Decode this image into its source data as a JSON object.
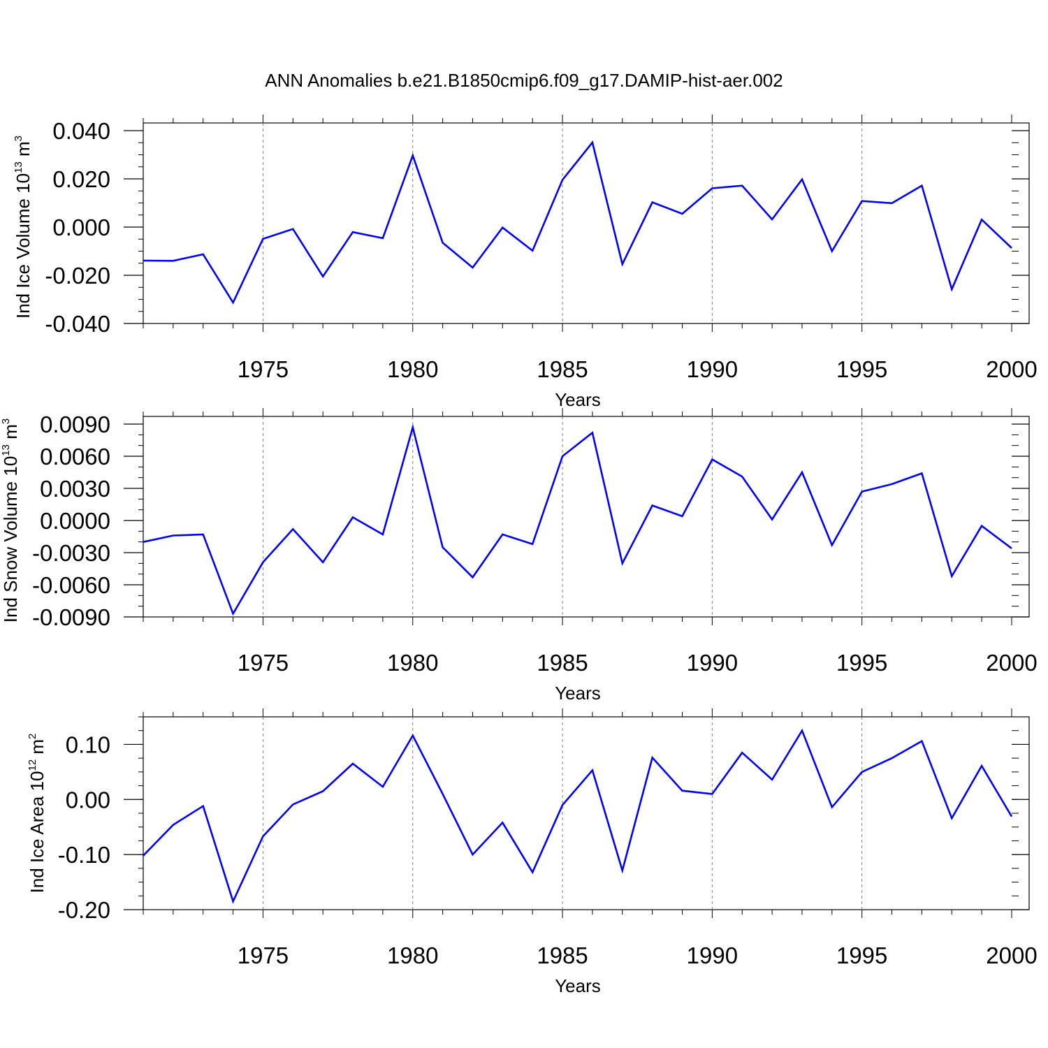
{
  "figure_title": "ANN Anomalies b.e21.B1850cmip6.f09_g17.DAMIP-hist-aer.002",
  "colors": {
    "line": "#0000ff",
    "axis": "#000000",
    "grid": "#808080"
  },
  "chart_data": [
    {
      "type": "line",
      "ylabel": {
        "text": "Ind Ice Volume 10",
        "sup": "13",
        "unit": " m",
        "unit_sup": "3"
      },
      "xlabel": "Years",
      "xlim": [
        1971,
        2000
      ],
      "ylim": [
        -0.04,
        0.04
      ],
      "x_ticks": [
        1975,
        1980,
        1985,
        1990,
        1995,
        2000
      ],
      "x_tick_labels": [
        "1975",
        "1980",
        "1985",
        "1990",
        "1995",
        "2000"
      ],
      "y_ticks": [
        -0.04,
        -0.02,
        0.0,
        0.02,
        0.04
      ],
      "y_tick_labels": [
        "-0.040",
        "-0.020",
        "0.000",
        "0.020",
        "0.040"
      ],
      "y_minor_step": 0.005,
      "grid": "vertical dashed at major x ticks",
      "x": [
        1971,
        1972,
        1973,
        1974,
        1975,
        1976,
        1977,
        1978,
        1979,
        1980,
        1981,
        1982,
        1983,
        1984,
        1985,
        1986,
        1987,
        1988,
        1989,
        1990,
        1991,
        1992,
        1993,
        1994,
        1995,
        1996,
        1997,
        1998,
        1999,
        2000
      ],
      "series": [
        {
          "values": [
            -0.0139,
            -0.014,
            -0.0113,
            -0.0313,
            -0.0049,
            -0.0008,
            -0.0205,
            -0.0021,
            -0.0046,
            0.0297,
            -0.0065,
            -0.0168,
            -0.0002,
            -0.0098,
            0.0196,
            0.0351,
            -0.0154,
            0.0103,
            0.0055,
            0.0161,
            0.0172,
            0.0032,
            0.0198,
            -0.01,
            0.0108,
            0.0099,
            0.0172,
            -0.0258,
            0.0031,
            -0.0087
          ]
        }
      ]
    },
    {
      "type": "line",
      "ylabel": {
        "text": "Ind Snow Volume 10",
        "sup": "13",
        "unit": " m",
        "unit_sup": "3"
      },
      "xlabel": "Years",
      "xlim": [
        1971,
        2000
      ],
      "ylim": [
        -0.009,
        0.009
      ],
      "x_ticks": [
        1975,
        1980,
        1985,
        1990,
        1995,
        2000
      ],
      "x_tick_labels": [
        "1975",
        "1980",
        "1985",
        "1990",
        "1995",
        "2000"
      ],
      "y_ticks": [
        -0.009,
        -0.006,
        -0.003,
        0.0,
        0.003,
        0.006,
        0.009
      ],
      "y_tick_labels": [
        "-0.0090",
        "-0.0060",
        "-0.0030",
        "0.0000",
        "0.0030",
        "0.0060",
        "0.0090"
      ],
      "y_minor_step": 0.001,
      "grid": "vertical dashed at major x ticks",
      "x": [
        1971,
        1972,
        1973,
        1974,
        1975,
        1976,
        1977,
        1978,
        1979,
        1980,
        1981,
        1982,
        1983,
        1984,
        1985,
        1986,
        1987,
        1988,
        1989,
        1990,
        1991,
        1992,
        1993,
        1994,
        1995,
        1996,
        1997,
        1998,
        1999,
        2000
      ],
      "series": [
        {
          "values": [
            -0.002,
            -0.0014,
            -0.0013,
            -0.0087,
            -0.0039,
            -0.0008,
            -0.0039,
            0.0003,
            -0.0013,
            0.0087,
            -0.0025,
            -0.0053,
            -0.0013,
            -0.0022,
            0.006,
            0.0082,
            -0.004,
            0.0014,
            0.0004,
            0.0057,
            0.0041,
            0.0001,
            0.0045,
            -0.0023,
            0.0027,
            0.0034,
            0.0044,
            -0.0052,
            -0.0005,
            -0.0026
          ]
        }
      ]
    },
    {
      "type": "line",
      "ylabel": {
        "text": "Ind Ice Area 10",
        "sup": "12",
        "unit": " m",
        "unit_sup": "2"
      },
      "xlabel": "Years",
      "xlim": [
        1971,
        2000
      ],
      "ylim": [
        -0.2,
        0.15
      ],
      "x_ticks": [
        1975,
        1980,
        1985,
        1990,
        1995,
        2000
      ],
      "x_tick_labels": [
        "1975",
        "1980",
        "1985",
        "1990",
        "1995",
        "2000"
      ],
      "y_ticks": [
        -0.2,
        -0.1,
        0.0,
        0.1
      ],
      "y_tick_labels": [
        "-0.20",
        "-0.10",
        "0.00",
        "0.10"
      ],
      "y_minor_step": 0.025,
      "grid": "vertical dashed at major x ticks",
      "x": [
        1971,
        1972,
        1973,
        1974,
        1975,
        1976,
        1977,
        1978,
        1979,
        1980,
        1981,
        1982,
        1983,
        1984,
        1985,
        1986,
        1987,
        1988,
        1989,
        1990,
        1991,
        1992,
        1993,
        1994,
        1995,
        1996,
        1997,
        1998,
        1999,
        2000
      ],
      "series": [
        {
          "values": [
            -0.102,
            -0.046,
            -0.012,
            -0.185,
            -0.067,
            -0.009,
            0.015,
            0.065,
            0.023,
            0.116,
            0.01,
            -0.1,
            -0.042,
            -0.132,
            -0.01,
            0.053,
            -0.129,
            0.076,
            0.016,
            0.01,
            0.085,
            0.036,
            0.125,
            -0.014,
            0.05,
            0.075,
            0.106,
            -0.034,
            0.061,
            -0.031
          ]
        }
      ]
    }
  ]
}
